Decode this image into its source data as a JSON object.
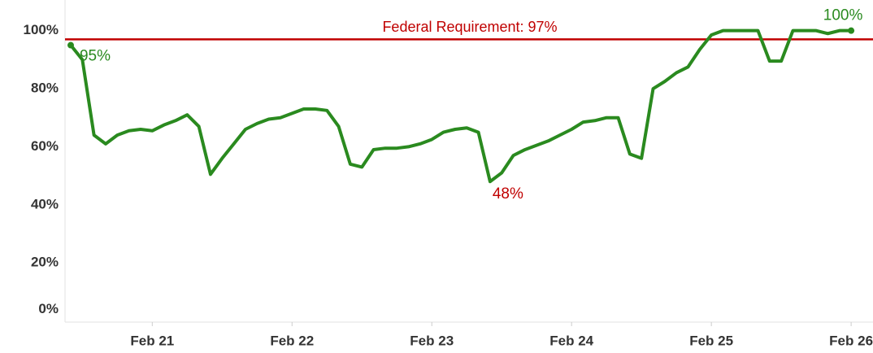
{
  "chart_data": {
    "type": "line",
    "categories": [
      null,
      null,
      null,
      null,
      null,
      null,
      null,
      "Feb 21",
      null,
      null,
      null,
      null,
      null,
      null,
      null,
      null,
      null,
      null,
      null,
      "Feb 22",
      null,
      null,
      null,
      null,
      null,
      null,
      null,
      null,
      null,
      null,
      null,
      "Feb 23",
      null,
      null,
      null,
      null,
      null,
      null,
      null,
      null,
      null,
      null,
      null,
      "Feb 24",
      null,
      null,
      null,
      null,
      null,
      null,
      null,
      null,
      null,
      null,
      null,
      "Feb 25",
      null,
      null,
      null,
      null,
      null,
      null,
      null,
      null,
      null,
      null,
      null,
      "Feb 26"
    ],
    "series": [
      {
        "color": "#2a8a1f",
        "values": [
          95,
          90,
          64,
          61,
          64,
          65.5,
          66,
          65.5,
          67.5,
          69,
          71,
          67,
          50.5,
          56,
          61,
          66,
          68,
          69.5,
          70,
          71.5,
          73,
          73,
          72.5,
          67,
          54,
          53,
          59,
          59.5,
          59.5,
          60,
          61,
          62.5,
          65,
          66,
          66.5,
          65,
          48,
          51,
          57,
          59,
          60.5,
          62,
          64,
          66,
          68.5,
          69,
          70,
          70,
          57.5,
          56,
          80,
          82.5,
          85.5,
          87.5,
          93.5,
          98.5,
          100,
          100,
          100,
          100,
          89.5,
          89.5,
          100,
          100,
          100,
          99,
          100,
          100
        ]
      }
    ],
    "ylim": [
      0,
      110
    ],
    "yticks": [
      {
        "value": 0,
        "label": "0%"
      },
      {
        "value": 20,
        "label": "20%"
      },
      {
        "value": 40,
        "label": "40%"
      },
      {
        "value": 60,
        "label": "60%"
      },
      {
        "value": 80,
        "label": "80%"
      },
      {
        "value": 100,
        "label": "100%"
      }
    ],
    "reference_line": {
      "value": 97,
      "label": "Federal Requirement: 97%",
      "color": "#c00000"
    },
    "annotations": [
      {
        "text": "95%",
        "point": 0,
        "color": "#2a8a1f"
      },
      {
        "text": "48%",
        "point": 36,
        "color": "#c00000"
      },
      {
        "text": "100%",
        "point": 67,
        "color": "#2a8a1f"
      }
    ],
    "grid": false
  }
}
